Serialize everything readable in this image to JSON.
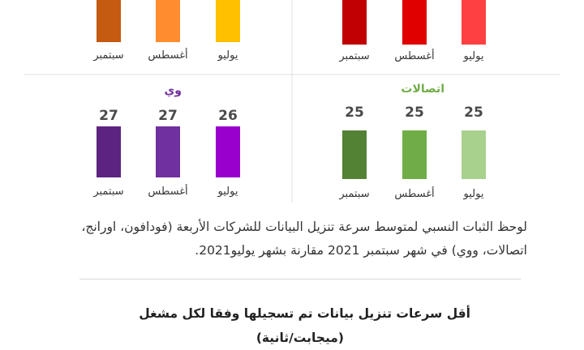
{
  "chart_data": [
    {
      "type": "bar",
      "title": "",
      "categories": [
        "يوليو",
        "أغسطس",
        "سبتمبر"
      ],
      "values": [
        null,
        null,
        null
      ],
      "colors": [
        "#ff4040",
        "#e00000",
        "#c00000"
      ],
      "title_color": ""
    },
    {
      "type": "bar",
      "title": "",
      "categories": [
        "يوليو",
        "أغسطس",
        "سبتمبر"
      ],
      "values": [
        null,
        null,
        null
      ],
      "colors": [
        "#ffc000",
        "#ff8c2e",
        "#c55a11"
      ],
      "title_color": ""
    },
    {
      "type": "bar",
      "title": "اتصالات",
      "categories": [
        "يوليو",
        "أغسطس",
        "سبتمبر"
      ],
      "values": [
        25,
        25,
        25
      ],
      "colors": [
        "#a9d18e",
        "#70ad47",
        "#548235"
      ],
      "title_color": "#70ad47"
    },
    {
      "type": "bar",
      "title": "وي",
      "categories": [
        "يوليو",
        "أغسطس",
        "سبتمبر"
      ],
      "values": [
        26,
        27,
        27
      ],
      "colors": [
        "#9900cc",
        "#7030a0",
        "#5c2480"
      ],
      "title_color": "#7030a0"
    }
  ],
  "caption": "لوحظ الثبات النسبي لمتوسط سرعة تنزيل البيانات للشركات الأربعة (فودافون، اورانج، اتصالات، ووي) في شهر سبتمبر 2021 مقارنة بشهر يوليو2021.",
  "heading": {
    "line1": "أقل سرعات تنزيل بيانات تم تسجيلها وفقا لكل مشغل",
    "line2": "(ميجابت/ثانية)"
  }
}
